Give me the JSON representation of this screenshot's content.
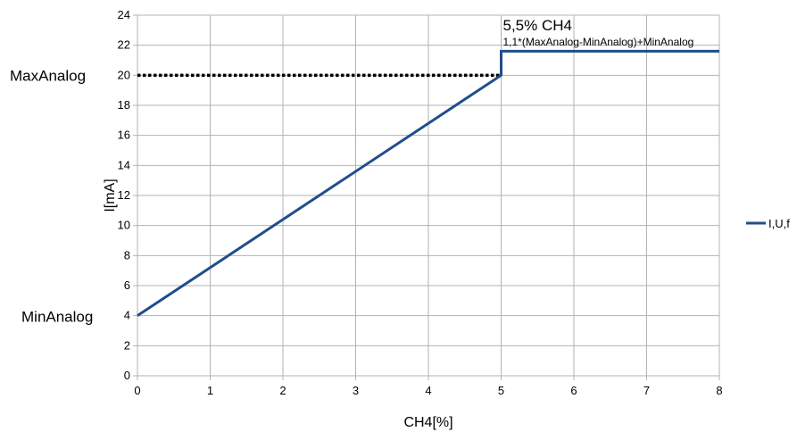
{
  "chart_data": {
    "type": "line",
    "xlabel": "CH4[%]",
    "ylabel": "I[mA]",
    "xlim": [
      0,
      8
    ],
    "ylim": [
      0,
      24
    ],
    "x_ticks": [
      0,
      1,
      2,
      3,
      4,
      5,
      6,
      7,
      8
    ],
    "y_ticks": [
      0,
      2,
      4,
      6,
      8,
      10,
      12,
      14,
      16,
      18,
      20,
      22,
      24
    ],
    "grid": true,
    "legend_position": "right",
    "series": [
      {
        "name": "I,U,f",
        "color": "#1f4e8c",
        "points": [
          [
            0,
            4
          ],
          [
            5,
            20
          ],
          [
            5,
            21.6
          ],
          [
            8,
            21.6
          ]
        ]
      }
    ],
    "reference_line": {
      "y": 20,
      "x_from": 0,
      "x_to": 5,
      "style": "dotted",
      "color": "#000000"
    },
    "labels": {
      "max": {
        "text": "MaxAnalog",
        "y": 20
      },
      "min": {
        "text": "MinAnalog",
        "y": 4
      }
    },
    "annotation": {
      "title": "5,5% CH4",
      "subtitle": "1,1*(MaxAnalog-MinAnalog)+MinAnalog",
      "x": 5,
      "y": 21.6
    }
  }
}
